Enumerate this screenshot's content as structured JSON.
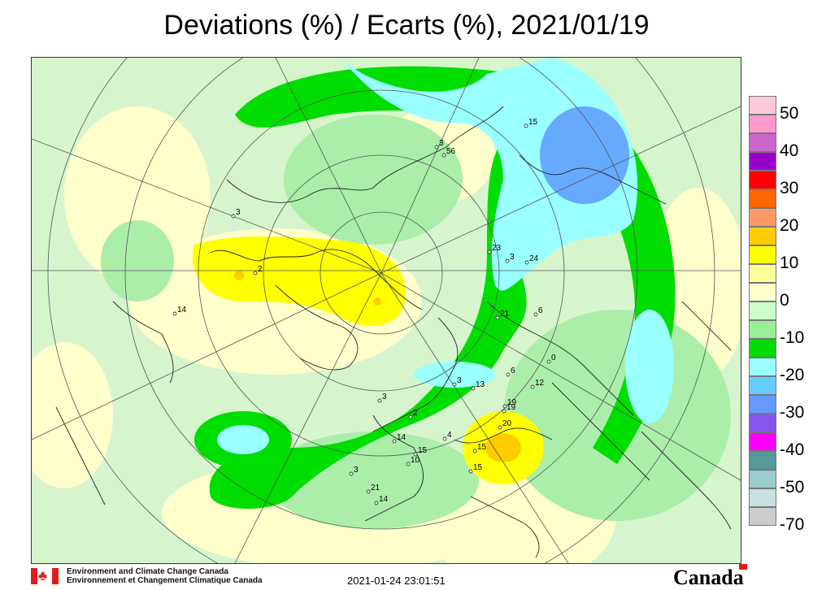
{
  "title": "Deviations (%) / Ecarts (%), 2021/01/19",
  "legend": {
    "entries": [
      {
        "label": "50",
        "colors": [
          "#ffc8d8",
          "#ff99cc"
        ]
      },
      {
        "label": "40",
        "colors": [
          "#cc66cc",
          "#9900cc"
        ]
      },
      {
        "label": "30",
        "colors": [
          "#ff0000",
          "#ff6600"
        ]
      },
      {
        "label": "20",
        "colors": [
          "#ff9966",
          "#ffcc00"
        ]
      },
      {
        "label": "10",
        "colors": [
          "#ffff00",
          "#ffff99"
        ]
      },
      {
        "label": "0",
        "colors": [
          "#ffffcc",
          "#ccffcc"
        ]
      },
      {
        "label": "-10",
        "colors": [
          "#99ee99",
          "#00dd00"
        ]
      },
      {
        "label": "-20",
        "colors": [
          "#99ffff",
          "#66ccff"
        ]
      },
      {
        "label": "-30",
        "colors": [
          "#6699ff",
          "#8855ee"
        ]
      },
      {
        "label": "-40",
        "colors": [
          "#ff00ff",
          "#559999"
        ]
      },
      {
        "label": "-50",
        "colors": [
          "#99cccc",
          "#c8e0e0"
        ]
      },
      {
        "label": "-70",
        "colors": [
          "#cccccc"
        ]
      }
    ]
  },
  "station_labels": [
    "15",
    "56",
    "23",
    "24",
    "21",
    "19",
    "13",
    "12",
    "19",
    "20",
    "15",
    "15",
    "14",
    "15",
    "10",
    "14",
    "4",
    "6",
    "0",
    "6",
    "3",
    "2",
    "3",
    "21",
    "14",
    "20",
    "3",
    "3",
    "3",
    "3",
    "2"
  ],
  "footer": {
    "agency_en": "Environment and Climate Change Canada",
    "agency_fr": "Environnement et Changement Climatique Canada",
    "timestamp": "2021-01-24 23:01:51",
    "wordmark": "Canada"
  },
  "icons": {
    "flag": "canada-flag-icon",
    "leaf": "maple-leaf-icon"
  }
}
